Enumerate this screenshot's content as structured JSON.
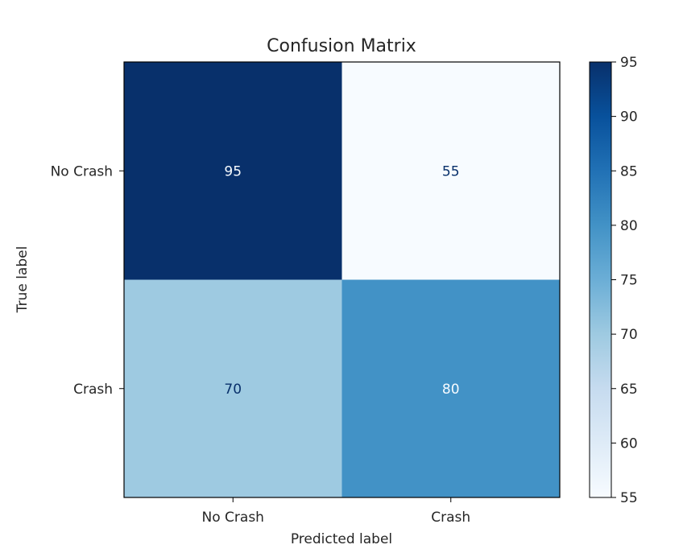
{
  "chart_data": {
    "type": "heatmap",
    "title": "Confusion Matrix",
    "xlabel": "Predicted label",
    "ylabel": "True label",
    "x_categories": [
      "No Crash",
      "Crash"
    ],
    "y_categories": [
      "No Crash",
      "Crash"
    ],
    "matrix": [
      [
        95,
        55
      ],
      [
        70,
        80
      ]
    ],
    "colormap": "Blues",
    "colorbar": {
      "range": [
        55,
        95
      ],
      "ticks": [
        55,
        60,
        65,
        70,
        75,
        80,
        85,
        90,
        95
      ]
    },
    "grid": false
  }
}
